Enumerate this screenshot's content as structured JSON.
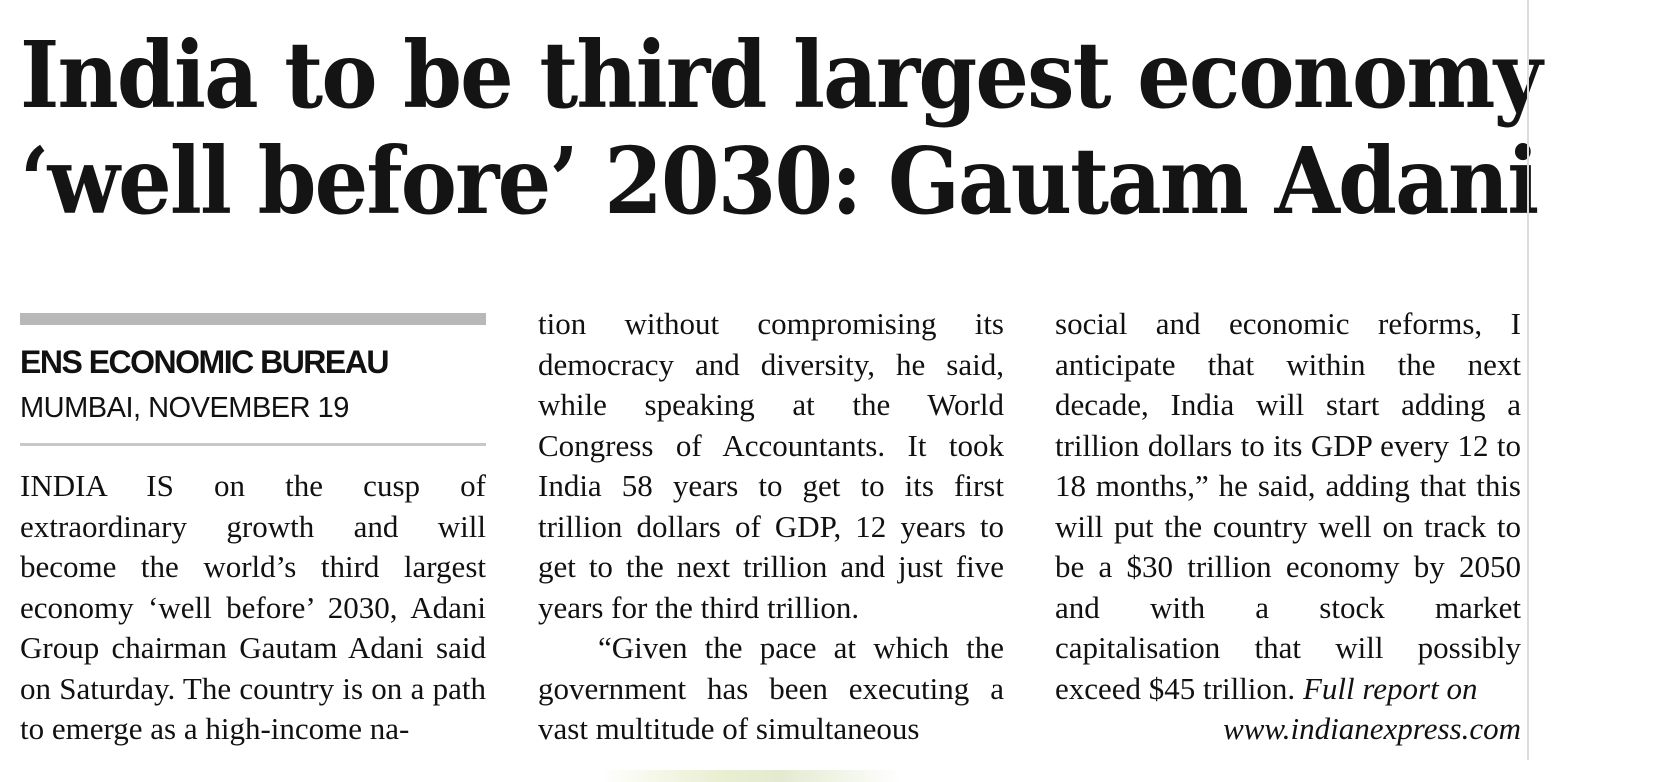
{
  "headline": {
    "line1": "India to be third largest economy",
    "line2": "‘well before’ 2030: Gautam Adani"
  },
  "byline": {
    "author": "ENS ECONOMIC BUREAU",
    "dateline": "MUMBAI, NOVEMBER 19"
  },
  "body": {
    "col1": "INDIA IS on the cusp of extraordinary growth and will become the world’s third largest economy ‘well before’ 2030, Adani Group chairman Gautam Adani said on Saturday. The country is on a path to emerge as a high-income na-",
    "col2_p1": "tion without compromising its democracy and diversity, he said, while speaking at the World Congress of Accountants. It took India 58 years to get to its first trillion dollars of GDP, 12 years to get to the next trillion and just five years for the third trillion.",
    "col2_p2": "“Given the pace at which the government has been executing a vast multitude of simultaneous",
    "col3": "social and economic reforms, I anticipate that within the next decade, India will start adding a trillion dollars to its GDP every 12 to 18 months,” he said, adding that this will put the country well on track to be a $30 trillion economy by 2050 and with a stock market capitalisation that will possibly exceed $45 trillion.",
    "full_report": "Full report on",
    "website": "www.indianexpress.com"
  }
}
